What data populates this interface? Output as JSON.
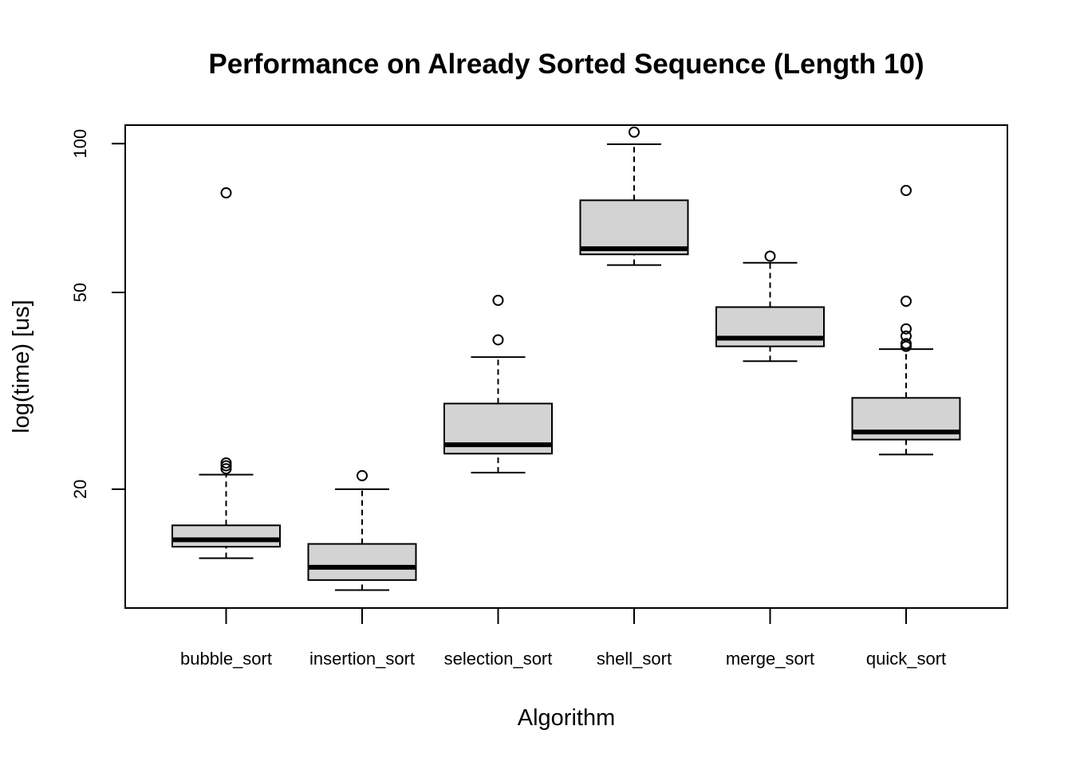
{
  "chart_data": {
    "type": "boxplot",
    "title": "Performance on Already Sorted Sequence (Length 10)",
    "xlabel": "Algorithm",
    "ylabel": "log(time) [us]",
    "y_scale": "log",
    "ylim": [
      11.5,
      109
    ],
    "y_ticks": [
      20,
      50,
      100
    ],
    "grid": false,
    "legend": "none",
    "colors": {
      "box_fill": "#d3d3d3",
      "stroke": "#000000",
      "background": "#ffffff"
    },
    "categories": [
      "bubble_sort",
      "insertion_sort",
      "selection_sort",
      "shell_sort",
      "merge_sort",
      "quick_sort"
    ],
    "boxes": [
      {
        "whisker_low": 14.5,
        "q1": 15.3,
        "median": 15.8,
        "q3": 16.9,
        "whisker_high": 21.4,
        "outliers": [
          22.0,
          22.3,
          22.6,
          79.5
        ]
      },
      {
        "whisker_low": 12.5,
        "q1": 13.1,
        "median": 13.9,
        "q3": 15.5,
        "whisker_high": 20.0,
        "outliers": [
          21.3
        ]
      },
      {
        "whisker_low": 21.6,
        "q1": 23.6,
        "median": 24.6,
        "q3": 29.8,
        "whisker_high": 37.0,
        "outliers": [
          40.1,
          48.2
        ]
      },
      {
        "whisker_low": 56.8,
        "q1": 59.7,
        "median": 61.3,
        "q3": 76.8,
        "whisker_high": 99.7,
        "outliers": [
          105.5
        ]
      },
      {
        "whisker_low": 36.3,
        "q1": 38.9,
        "median": 40.4,
        "q3": 46.7,
        "whisker_high": 57.4,
        "outliers": [
          59.2
        ]
      },
      {
        "whisker_low": 23.5,
        "q1": 25.2,
        "median": 26.1,
        "q3": 30.6,
        "whisker_high": 38.4,
        "outliers": [
          38.9,
          39.4,
          40.8,
          42.2,
          48.0,
          80.4
        ]
      }
    ]
  }
}
